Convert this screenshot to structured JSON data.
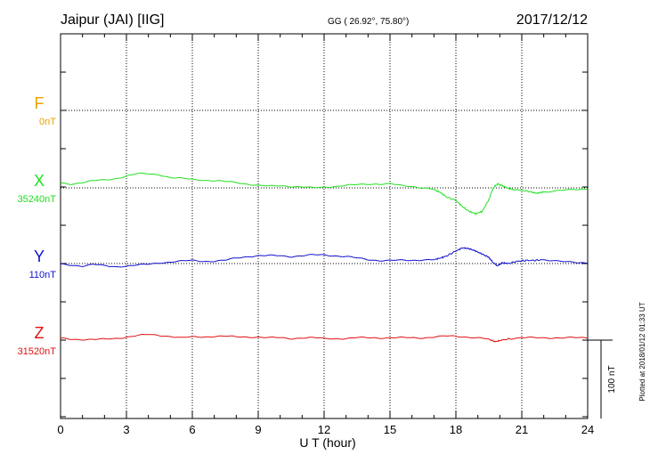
{
  "header": {
    "station": "Jaipur (JAI)  [IIG]",
    "coords": "GG ( 26.92°,  75.80°)",
    "date": "2017/12/12"
  },
  "footer": {
    "xlabel": "U T (hour)",
    "plotted_note": "Plotted at 2018/01/12 01:33 UT",
    "scale_label": "100 nT"
  },
  "chart_data": {
    "type": "line",
    "xlim": [
      0,
      24
    ],
    "x_ticks": [
      0,
      3,
      6,
      9,
      12,
      15,
      18,
      21,
      24
    ],
    "grid": true,
    "scale_bar_nT": 100,
    "series": [
      {
        "name": "F",
        "baseline_label": "0nT",
        "color": "#f0a000",
        "x": [],
        "values": []
      },
      {
        "name": "X",
        "baseline_label": "35240nT",
        "color": "#20e020",
        "x": [
          0,
          0.5,
          1,
          1.5,
          2,
          2.5,
          3,
          3.5,
          4,
          4.5,
          5,
          5.5,
          6,
          6.5,
          7,
          7.5,
          8,
          8.5,
          9,
          9.5,
          10,
          10.5,
          11,
          11.5,
          12,
          12.5,
          13,
          13.5,
          14,
          14.5,
          15,
          15.5,
          16,
          16.5,
          17,
          17.3,
          17.6,
          18,
          18.3,
          18.6,
          18.9,
          19.2,
          19.5,
          19.7,
          19.9,
          20.1,
          20.3,
          20.6,
          21,
          21.4,
          21.7,
          22,
          22.5,
          23,
          23.5,
          24
        ],
        "values": [
          6,
          5,
          7,
          9,
          10,
          12,
          15,
          18,
          18,
          17,
          13,
          12,
          11,
          10,
          9,
          8,
          7,
          5,
          3,
          2,
          3,
          2,
          1,
          0,
          1,
          2,
          3,
          4,
          5,
          5,
          5,
          3,
          2,
          0,
          -2,
          -6,
          -12,
          -16,
          -24,
          -30,
          -33,
          -30,
          -15,
          0,
          5,
          3,
          0,
          -2,
          -3,
          -5,
          -7,
          -5,
          -4,
          -3,
          -2,
          -1
        ]
      },
      {
        "name": "Y",
        "baseline_label": "110nT",
        "color": "#1010d0",
        "x": [
          0,
          0.5,
          1,
          1.5,
          2,
          2.5,
          3,
          3.5,
          4,
          4.5,
          5,
          5.5,
          6,
          6.5,
          7,
          7.5,
          8,
          8.5,
          9,
          9.5,
          10,
          10.5,
          11,
          11.5,
          12,
          12.5,
          13,
          13.5,
          14,
          14.5,
          15,
          15.5,
          16,
          16.5,
          17,
          17.3,
          17.6,
          18,
          18.3,
          18.6,
          18.9,
          19.2,
          19.5,
          19.7,
          19.9,
          20.1,
          20.4,
          20.8,
          21.2,
          21.6,
          22,
          22.5,
          23,
          23.5,
          24
        ],
        "values": [
          -1,
          -2,
          -3,
          -1,
          -3,
          -4,
          -3,
          -2,
          -1,
          1,
          2,
          3,
          4,
          3,
          3,
          4,
          7,
          9,
          10,
          10,
          10,
          9,
          10,
          11,
          11,
          10,
          9,
          7,
          5,
          4,
          4,
          4,
          4,
          5,
          5,
          7,
          10,
          16,
          20,
          19,
          16,
          12,
          8,
          1,
          -3,
          1,
          0,
          3,
          4,
          4,
          5,
          4,
          2,
          1,
          1
        ]
      },
      {
        "name": "Z",
        "baseline_label": "31520nT",
        "color": "#e01010",
        "x": [
          0,
          0.5,
          1,
          1.5,
          2,
          2.5,
          3,
          3.5,
          4,
          4.5,
          5,
          5.5,
          6,
          6.5,
          7,
          7.5,
          8,
          8.5,
          9,
          9.5,
          10,
          10.5,
          11,
          11.5,
          12,
          12.5,
          13,
          13.5,
          14,
          14.5,
          15,
          15.5,
          16,
          16.5,
          17,
          17.5,
          18,
          18.5,
          19,
          19.5,
          19.8,
          20.1,
          20.5,
          21,
          21.5,
          22,
          22.5,
          23,
          23.5,
          24
        ],
        "values": [
          2,
          1,
          1,
          1,
          1,
          2,
          4,
          6,
          7,
          6,
          5,
          3,
          4,
          4,
          5,
          5,
          4,
          4,
          4,
          3,
          3,
          2,
          3,
          3,
          2,
          2,
          2,
          3,
          3,
          3,
          3,
          3,
          3,
          3,
          4,
          5,
          5,
          4,
          3,
          1,
          -2,
          0,
          2,
          3,
          3,
          3,
          3,
          3,
          3,
          3
        ]
      }
    ]
  }
}
